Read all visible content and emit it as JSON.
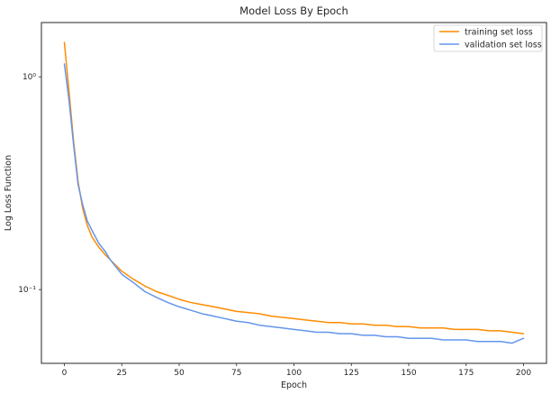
{
  "chart_data": {
    "type": "line",
    "title": "Model Loss By Epoch",
    "xlabel": "Epoch",
    "ylabel": "Log Loss Function",
    "yscale": "log",
    "xlim": [
      -10,
      210
    ],
    "ylim": [
      0.045,
      1.8
    ],
    "x_ticks": [
      0,
      25,
      50,
      75,
      100,
      125,
      150,
      175,
      200
    ],
    "y_ticks": [
      {
        "value": 1,
        "label": "10⁰"
      },
      {
        "value": 0.1,
        "label": "10⁻¹"
      }
    ],
    "grid": false,
    "legend_position": "top-right",
    "x": [
      0,
      2,
      4,
      6,
      8,
      10,
      12,
      15,
      18,
      20,
      25,
      30,
      35,
      40,
      45,
      50,
      55,
      60,
      65,
      70,
      75,
      80,
      85,
      90,
      95,
      100,
      105,
      110,
      115,
      120,
      125,
      130,
      135,
      140,
      145,
      150,
      155,
      160,
      165,
      170,
      175,
      180,
      185,
      190,
      195,
      200
    ],
    "series": [
      {
        "name": "training set loss",
        "color": "#ff8c00",
        "values": [
          1.45,
          0.86,
          0.5,
          0.32,
          0.24,
          0.2,
          0.177,
          0.158,
          0.145,
          0.138,
          0.122,
          0.112,
          0.104,
          0.098,
          0.094,
          0.09,
          0.087,
          0.085,
          0.083,
          0.081,
          0.079,
          0.078,
          0.077,
          0.075,
          0.074,
          0.073,
          0.072,
          0.071,
          0.07,
          0.07,
          0.069,
          0.069,
          0.068,
          0.068,
          0.067,
          0.067,
          0.066,
          0.066,
          0.066,
          0.065,
          0.065,
          0.065,
          0.064,
          0.064,
          0.063,
          0.062
        ]
      },
      {
        "name": "validation set loss",
        "color": "#6495ed",
        "values": [
          1.15,
          0.78,
          0.48,
          0.31,
          0.25,
          0.21,
          0.19,
          0.165,
          0.15,
          0.138,
          0.118,
          0.108,
          0.098,
          0.092,
          0.087,
          0.083,
          0.08,
          0.077,
          0.075,
          0.073,
          0.071,
          0.07,
          0.068,
          0.067,
          0.066,
          0.065,
          0.064,
          0.063,
          0.063,
          0.062,
          0.062,
          0.061,
          0.061,
          0.06,
          0.06,
          0.059,
          0.059,
          0.059,
          0.058,
          0.058,
          0.058,
          0.057,
          0.057,
          0.057,
          0.056,
          0.059
        ]
      }
    ]
  }
}
